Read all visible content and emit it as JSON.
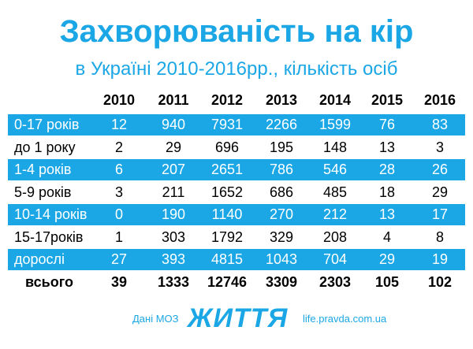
{
  "header": {
    "title": "Захворюваність на кір",
    "subtitle": "в Україні 2010-2016рр., кількість осіб"
  },
  "table": {
    "columns": [
      "2010",
      "2011",
      "2012",
      "2013",
      "2014",
      "2015",
      "2016"
    ],
    "rows": [
      {
        "label": "0-17 років",
        "values": [
          12,
          940,
          7931,
          2266,
          1599,
          76,
          83
        ]
      },
      {
        "label": "до 1 року",
        "values": [
          2,
          29,
          696,
          195,
          148,
          13,
          3
        ]
      },
      {
        "label": "1-4 років",
        "values": [
          6,
          207,
          2651,
          786,
          546,
          28,
          26
        ]
      },
      {
        "label": "5-9 років",
        "values": [
          3,
          211,
          1652,
          686,
          485,
          18,
          29
        ]
      },
      {
        "label": "10-14 років",
        "values": [
          0,
          190,
          1140,
          270,
          212,
          13,
          17
        ]
      },
      {
        "label": "15-17років",
        "values": [
          1,
          303,
          1792,
          329,
          208,
          4,
          8
        ]
      },
      {
        "label": "дорослі",
        "values": [
          27,
          393,
          4815,
          1043,
          704,
          29,
          19
        ]
      }
    ],
    "total": {
      "label": "всього",
      "values": [
        39,
        1333,
        12746,
        3309,
        2303,
        105,
        102
      ]
    }
  },
  "footer": {
    "source": "Дані МОЗ",
    "logo": "ЖИТТЯ",
    "site": "life.pravda.com.ua"
  }
}
